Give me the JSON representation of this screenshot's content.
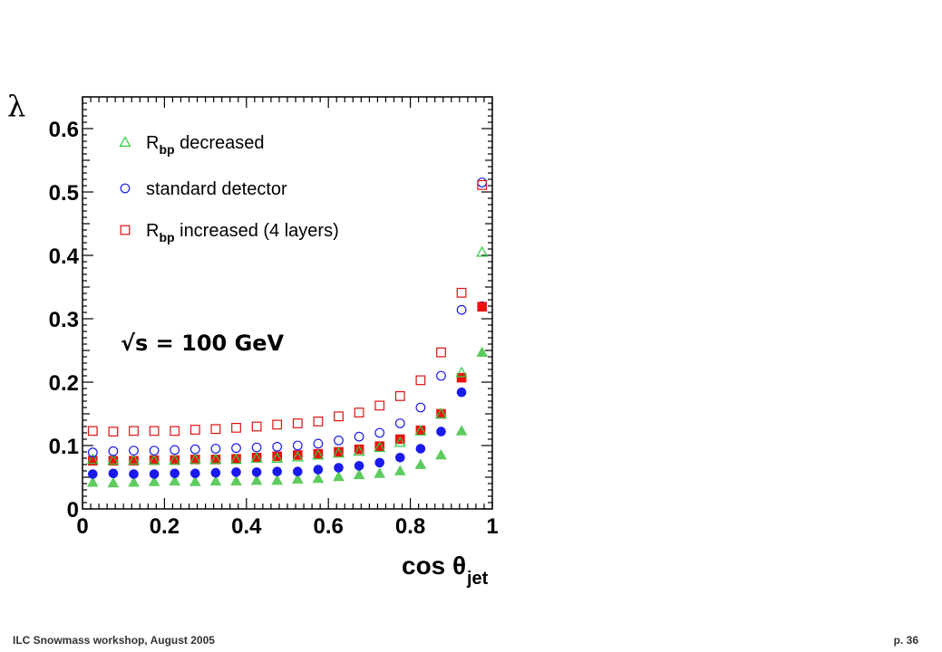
{
  "chart_data": {
    "type": "scatter",
    "ylabel": "λ",
    "xlabel": "cos θ",
    "xlabel_subscript": "jet",
    "xlim": [
      0,
      1
    ],
    "ylim": [
      0,
      0.65
    ],
    "xticks": [
      "0",
      "0.2",
      "0.4",
      "0.6",
      "0.8",
      "1"
    ],
    "yticks": [
      "0",
      "0.1",
      "0.2",
      "0.3",
      "0.4",
      "0.5",
      "0.6"
    ],
    "annotation": "√s = 100 GeV",
    "legend": [
      {
        "prefix": "R",
        "sub": "bp",
        "text": " decreased",
        "marker": "triangle-open",
        "color": "#2ecc40"
      },
      {
        "prefix": "",
        "sub": "",
        "text": "standard detector",
        "marker": "circle-open",
        "color": "#1a1aee"
      },
      {
        "prefix": "R",
        "sub": "bp",
        "text": " increased (4 layers)",
        "marker": "square-open",
        "color": "#dd1111"
      }
    ],
    "x": [
      0.025,
      0.075,
      0.125,
      0.175,
      0.225,
      0.275,
      0.325,
      0.375,
      0.425,
      0.475,
      0.525,
      0.575,
      0.625,
      0.675,
      0.725,
      0.775,
      0.825,
      0.875,
      0.925,
      0.975
    ],
    "series": [
      {
        "marker": "triangle-open",
        "color": "#2ecc40",
        "values": [
          0.078,
          0.077,
          0.077,
          0.077,
          0.077,
          0.078,
          0.078,
          0.078,
          0.08,
          0.08,
          0.082,
          0.085,
          0.088,
          0.091,
          0.097,
          0.105,
          0.123,
          0.15,
          0.215,
          0.405
        ]
      },
      {
        "marker": "circle-open",
        "color": "#1a1aee",
        "values": [
          0.089,
          0.091,
          0.092,
          0.092,
          0.093,
          0.094,
          0.095,
          0.096,
          0.097,
          0.098,
          0.1,
          0.103,
          0.108,
          0.114,
          0.12,
          0.135,
          0.16,
          0.21,
          0.314,
          0.515
        ]
      },
      {
        "marker": "square-open",
        "color": "#dd1111",
        "values": [
          0.123,
          0.122,
          0.123,
          0.123,
          0.123,
          0.125,
          0.126,
          0.128,
          0.13,
          0.133,
          0.135,
          0.138,
          0.146,
          0.152,
          0.163,
          0.178,
          0.203,
          0.247,
          0.341,
          0.511
        ]
      },
      {
        "marker": "triangle-filled",
        "color": "#5ecb5e",
        "values": [
          0.042,
          0.041,
          0.042,
          0.043,
          0.044,
          0.043,
          0.044,
          0.044,
          0.045,
          0.045,
          0.047,
          0.048,
          0.051,
          0.054,
          0.056,
          0.06,
          0.07,
          0.085,
          0.123,
          0.247
        ]
      },
      {
        "marker": "circle-filled",
        "color": "#1a1aee",
        "values": [
          0.055,
          0.056,
          0.055,
          0.055,
          0.056,
          0.056,
          0.057,
          0.058,
          0.058,
          0.059,
          0.059,
          0.062,
          0.065,
          0.068,
          0.073,
          0.081,
          0.095,
          0.122,
          0.184,
          0.32
        ]
      },
      {
        "marker": "square-filled",
        "color": "#ee1111",
        "values": [
          0.076,
          0.076,
          0.076,
          0.077,
          0.077,
          0.078,
          0.078,
          0.079,
          0.081,
          0.083,
          0.085,
          0.087,
          0.09,
          0.094,
          0.099,
          0.11,
          0.124,
          0.15,
          0.207,
          0.319
        ]
      }
    ]
  },
  "footer": {
    "left": "ILC Snowmass workshop, August 2005",
    "right": "p. 36"
  }
}
